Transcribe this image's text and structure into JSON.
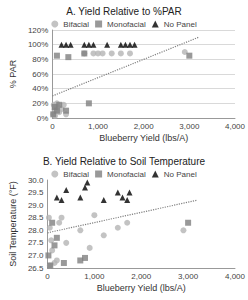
{
  "chart_data": [
    {
      "type": "scatter",
      "title": "A. Yield Relative to %PAR",
      "xlabel": "Blueberry Yield (lbs/A)",
      "ylabel": "% PAR",
      "xlim": [
        0,
        4000
      ],
      "xticks": [
        0,
        {
          "value": 1000,
          "label": "1,000"
        },
        {
          "value": 2000,
          "label": "2,000"
        },
        {
          "value": 3000,
          "label": "3,000"
        },
        {
          "value": 4000,
          "label": "4,000"
        }
      ],
      "ylim": [
        0,
        120
      ],
      "yticks": [
        {
          "value": 0,
          "label": "0%"
        },
        {
          "value": 20,
          "label": "20%"
        },
        {
          "value": 40,
          "label": "40%"
        },
        {
          "value": 60,
          "label": "60%"
        },
        {
          "value": 80,
          "label": "80%"
        },
        {
          "value": 100,
          "label": "100%"
        },
        {
          "value": 120,
          "label": "120%"
        }
      ],
      "grid": true,
      "legend": "top",
      "series": [
        {
          "name": "Bifacial",
          "color": "#b4b4b4",
          "marker": "circle",
          "x": [
            20,
            50,
            80,
            100,
            150,
            200,
            250,
            300,
            30,
            60,
            120,
            700,
            900,
            1000,
            1100,
            1300,
            1500,
            1700,
            2900
          ],
          "values": [
            5,
            10,
            15,
            20,
            8,
            12,
            18,
            5,
            18,
            3,
            15,
            88,
            88,
            88,
            88,
            88,
            88,
            88,
            90
          ]
        },
        {
          "name": "Monofacial",
          "color": "#808080",
          "marker": "square",
          "x": [
            20,
            50,
            100,
            100,
            150,
            300,
            350,
            700,
            800,
            3000
          ],
          "values": [
            5,
            15,
            10,
            85,
            18,
            10,
            83,
            88,
            20,
            85
          ]
        },
        {
          "name": "No Panel",
          "color": "#000000",
          "marker": "triangle",
          "x": [
            200,
            300,
            400,
            700,
            800,
            900,
            1200,
            1500,
            1600,
            1700,
            1800
          ],
          "values": [
            100,
            100,
            100,
            100,
            100,
            100,
            100,
            100,
            100,
            100,
            100
          ]
        },
        {
          "type": "line",
          "color": "#808080",
          "line_style": "dotted",
          "x": [
            0,
            3200
          ],
          "values": [
            30,
            110
          ]
        }
      ]
    },
    {
      "type": "scatter",
      "title": "B. Yield Relative to Soil Temperature",
      "xlabel": "Blueberry Yield (lbs/A)",
      "ylabel": "Soil Temperature (°F)",
      "xlim": [
        0,
        4000
      ],
      "xticks": [
        0,
        {
          "value": 1000,
          "label": "1,000"
        },
        {
          "value": 2000,
          "label": "2,000"
        },
        {
          "value": 3000,
          "label": "3,000"
        },
        {
          "value": 4000,
          "label": "4,000"
        }
      ],
      "ylim": [
        26.5,
        30
      ],
      "yticks": [
        26.5,
        {
          "value": 27,
          "label": "27.0"
        },
        27.5,
        {
          "value": 28,
          "label": "28.0"
        },
        28.5,
        {
          "value": 29,
          "label": "29.0"
        },
        29.5,
        {
          "value": 30,
          "label": "30.0"
        }
      ],
      "grid": false,
      "legend": "top",
      "series": [
        {
          "name": "Bifacial",
          "color": "#b4b4b4",
          "marker": "circle",
          "x": [
            30,
            50,
            80,
            100,
            150,
            200,
            250,
            300,
            400,
            700,
            900,
            1000,
            1200,
            1500,
            1700,
            2900,
            50
          ],
          "values": [
            28.5,
            28.1,
            27.6,
            27.2,
            26.7,
            26.8,
            28.3,
            28.5,
            27.5,
            28.0,
            27.3,
            28.6,
            27.8,
            28.1,
            28.3,
            28.0,
            26.6
          ]
        },
        {
          "name": "Monofacial",
          "color": "#808080",
          "marker": "square",
          "x": [
            20,
            60,
            100,
            150,
            200,
            350,
            700,
            800,
            3000
          ],
          "values": [
            27.0,
            26.6,
            28.3,
            27.4,
            27.7,
            26.7,
            26.8,
            26.9,
            28.3
          ]
        },
        {
          "name": "No Panel",
          "color": "#000000",
          "marker": "triangle",
          "x": [
            200,
            300,
            400,
            700,
            800,
            850,
            1200,
            1500,
            1600,
            1700,
            1750
          ],
          "values": [
            29.3,
            29.2,
            29.6,
            29.3,
            29.7,
            29.9,
            29.2,
            29.5,
            29.3,
            29.2,
            29.5
          ]
        },
        {
          "type": "line",
          "color": "#808080",
          "line_style": "dotted",
          "x": [
            0,
            3200
          ],
          "values": [
            27.9,
            29.2
          ]
        }
      ]
    }
  ]
}
